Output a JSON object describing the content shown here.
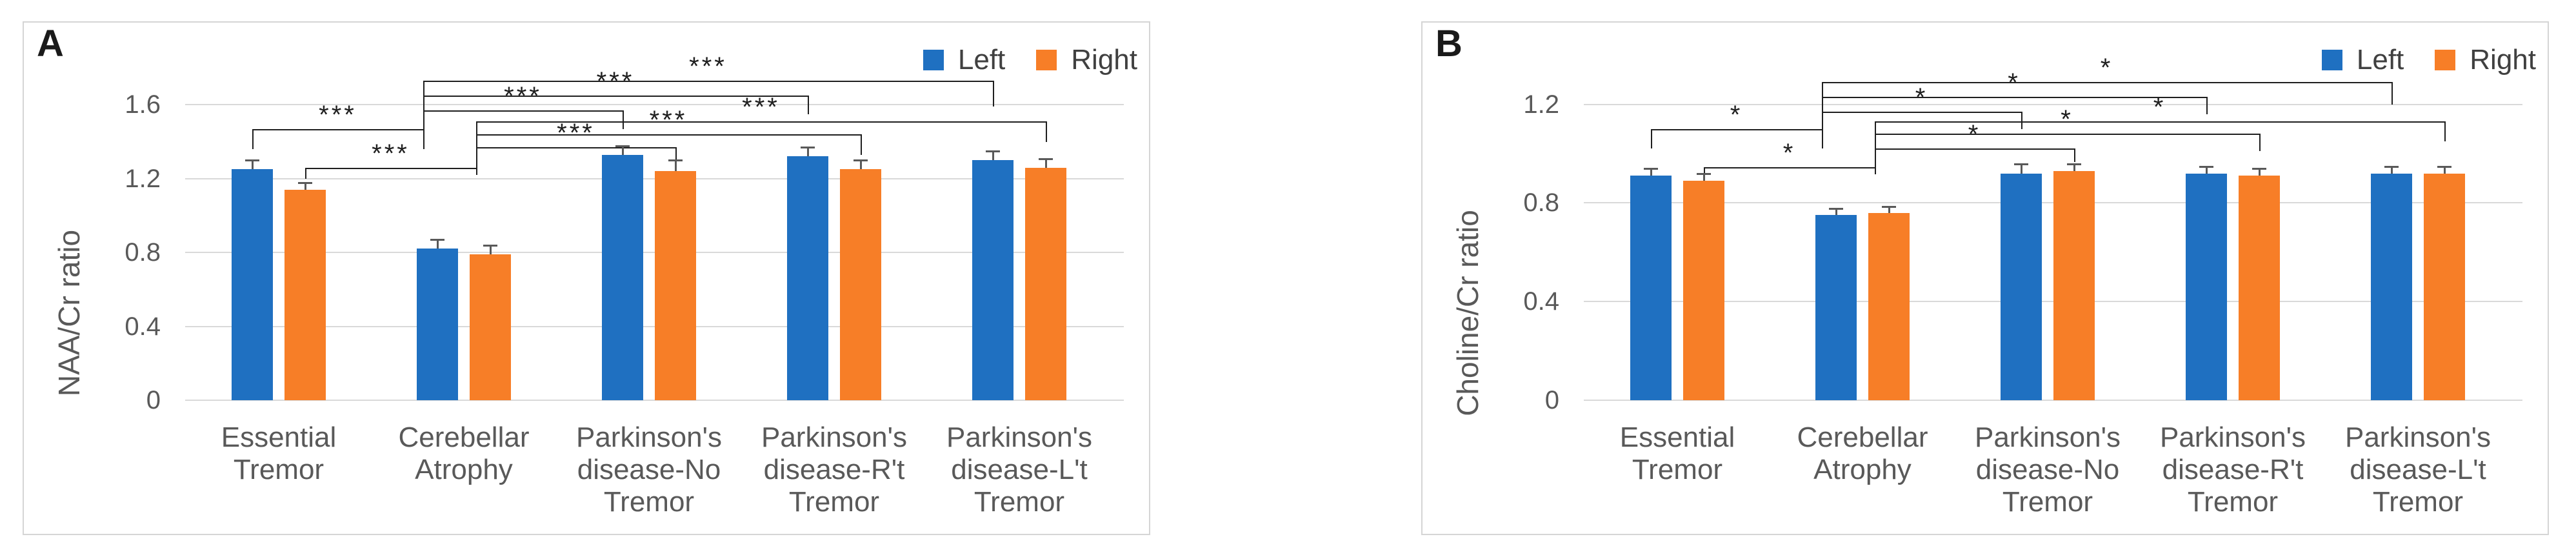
{
  "chart_data": [
    {
      "type": "bar",
      "panel_label": "A",
      "ylabel": "NAA/Cr ratio",
      "categories": [
        "Essential Tremor",
        "Cerebellar Atrophy",
        "Parkinson's disease-No Tremor",
        "Parkinson's disease-R't Tremor",
        "Parkinson's disease-L't Tremor"
      ],
      "category_lines": [
        [
          "Essential",
          "Tremor"
        ],
        [
          "Cerebellar",
          "Atrophy"
        ],
        [
          "Parkinson's",
          "disease-No",
          "Tremor"
        ],
        [
          "Parkinson's",
          "disease-R't",
          "Tremor"
        ],
        [
          "Parkinson's",
          "disease-L't",
          "Tremor"
        ]
      ],
      "series": [
        {
          "name": "Left",
          "color": "#1F70C1",
          "values": [
            1.25,
            0.82,
            1.33,
            1.32,
            1.3
          ],
          "errors": [
            0.05,
            0.05,
            0.05,
            0.05,
            0.05
          ]
        },
        {
          "name": "Right",
          "color": "#F77E27",
          "values": [
            1.14,
            0.79,
            1.24,
            1.25,
            1.26
          ],
          "errors": [
            0.04,
            0.05,
            0.06,
            0.05,
            0.05
          ]
        }
      ],
      "ylim": [
        0,
        1.86
      ],
      "yticks": [
        0,
        0.4,
        0.8,
        1.2,
        1.6
      ],
      "grid": true,
      "legend_position": "top-right",
      "significance": [
        {
          "a": [
            1,
            0
          ],
          "b": [
            4,
            0
          ],
          "y": 1.73,
          "ae": 1.36,
          "be": 1.59,
          "label": "***"
        },
        {
          "a": [
            1,
            0
          ],
          "b": [
            3,
            0
          ],
          "y": 1.65,
          "ae": 1.36,
          "be": 1.55,
          "label": "***"
        },
        {
          "a": [
            1,
            0
          ],
          "b": [
            2,
            0
          ],
          "y": 1.57,
          "ae": 1.36,
          "be": 1.47,
          "label": "***"
        },
        {
          "a": [
            0,
            0
          ],
          "b": [
            1,
            0
          ],
          "y": 1.47,
          "ae": 1.36,
          "be": 1.36,
          "label": "***"
        },
        {
          "a": [
            1,
            1
          ],
          "b": [
            4,
            1
          ],
          "y": 1.51,
          "ae": 1.22,
          "be": 1.4,
          "label": "***"
        },
        {
          "a": [
            1,
            1
          ],
          "b": [
            3,
            1
          ],
          "y": 1.44,
          "ae": 1.22,
          "be": 1.33,
          "label": "***"
        },
        {
          "a": [
            1,
            1
          ],
          "b": [
            2,
            1
          ],
          "y": 1.37,
          "ae": 1.22,
          "be": 1.28,
          "label": "***"
        },
        {
          "a": [
            0,
            1
          ],
          "b": [
            1,
            1
          ],
          "y": 1.26,
          "ae": 1.2,
          "be": 1.22,
          "label": "***"
        }
      ]
    },
    {
      "type": "bar",
      "panel_label": "B",
      "ylabel": "Choline/Cr ratio",
      "categories": [
        "Essential Tremor",
        "Cerebellar Atrophy",
        "Parkinson's disease-No Tremor",
        "Parkinson's disease-R't Tremor",
        "Parkinson's disease-L't Tremor"
      ],
      "category_lines": [
        [
          "Essential",
          "Tremor"
        ],
        [
          "Cerebellar",
          "Atrophy"
        ],
        [
          "Parkinson's",
          "disease-No",
          "Tremor"
        ],
        [
          "Parkinson's",
          "disease-R't",
          "Tremor"
        ],
        [
          "Parkinson's",
          "disease-L't",
          "Tremor"
        ]
      ],
      "series": [
        {
          "name": "Left",
          "color": "#1F70C1",
          "values": [
            0.91,
            0.75,
            0.92,
            0.92,
            0.92
          ],
          "errors": [
            0.03,
            0.025,
            0.04,
            0.03,
            0.03
          ]
        },
        {
          "name": "Right",
          "color": "#F77E27",
          "values": [
            0.89,
            0.76,
            0.93,
            0.91,
            0.92
          ],
          "errors": [
            0.03,
            0.025,
            0.03,
            0.03,
            0.03
          ]
        }
      ],
      "ylim": [
        0,
        1.39
      ],
      "yticks": [
        0,
        0.4,
        0.8,
        1.2
      ],
      "grid": true,
      "legend_position": "top-right",
      "significance": [
        {
          "a": [
            1,
            0
          ],
          "b": [
            4,
            0
          ],
          "y": 1.29,
          "ae": 1.02,
          "be": 1.2,
          "label": "*"
        },
        {
          "a": [
            1,
            0
          ],
          "b": [
            3,
            0
          ],
          "y": 1.23,
          "ae": 1.02,
          "be": 1.16,
          "label": "*"
        },
        {
          "a": [
            1,
            0
          ],
          "b": [
            2,
            0
          ],
          "y": 1.17,
          "ae": 1.02,
          "be": 1.1,
          "label": "*"
        },
        {
          "a": [
            0,
            0
          ],
          "b": [
            1,
            0
          ],
          "y": 1.1,
          "ae": 1.02,
          "be": 1.02,
          "label": "*"
        },
        {
          "a": [
            1,
            1
          ],
          "b": [
            4,
            1
          ],
          "y": 1.13,
          "ae": 0.915,
          "be": 1.05,
          "label": "*"
        },
        {
          "a": [
            1,
            1
          ],
          "b": [
            3,
            1
          ],
          "y": 1.08,
          "ae": 0.915,
          "be": 1.01,
          "label": "*"
        },
        {
          "a": [
            1,
            1
          ],
          "b": [
            2,
            1
          ],
          "y": 1.02,
          "ae": 0.915,
          "be": 0.965,
          "label": "*"
        },
        {
          "a": [
            0,
            1
          ],
          "b": [
            1,
            1
          ],
          "y": 0.945,
          "ae": 0.915,
          "be": 0.915,
          "label": "*"
        }
      ]
    }
  ]
}
